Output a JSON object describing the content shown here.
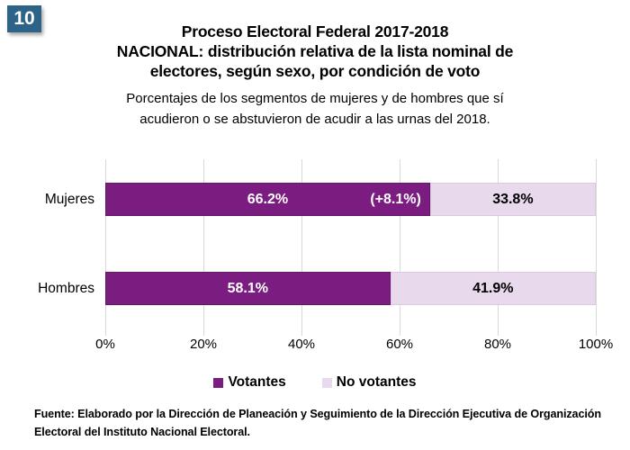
{
  "figure": {
    "badge": "10",
    "title_lines": [
      "Proceso Electoral Federal 2017-2018",
      "NACIONAL:  distribución relativa de la lista nominal de",
      "electores, según sexo, por condición de voto"
    ],
    "subtitle_lines": [
      "Porcentajes de los segmentos de mujeres y de hombres que sí",
      "acudieron o se abstuvieron de acudir a las urnas del 2018."
    ],
    "source_lines": [
      "Fuente: Elaborado por la Dirección de Planeación y Seguimiento de la Dirección Ejecutiva de Organización",
      "Electoral del Instituto Nacional Electoral."
    ]
  },
  "chart_data": {
    "type": "bar",
    "orientation": "horizontal",
    "stacked": true,
    "unit": "%",
    "categories": [
      "Mujeres",
      "Hombres"
    ],
    "series": [
      {
        "name": "Votantes",
        "color": "#7A1C80",
        "values": [
          66.2,
          58.1
        ],
        "labels": [
          "66.2%",
          "58.1%"
        ]
      },
      {
        "name": "No votantes",
        "color": "#E8D9EC",
        "values": [
          33.8,
          41.9
        ],
        "labels": [
          "33.8%",
          "41.9%"
        ]
      }
    ],
    "annotations": [
      {
        "category": "Mujeres",
        "series": "Votantes",
        "text": "(+8.1%)",
        "position": "inside-end"
      }
    ],
    "x_axis": {
      "min": 0,
      "max": 100,
      "tick_labels": [
        "0%",
        "20%",
        "40%",
        "60%",
        "80%",
        "100%"
      ],
      "gridlines": true
    },
    "legend": {
      "position": "bottom",
      "entries": [
        "Votantes",
        "No votantes"
      ]
    }
  },
  "colors": {
    "votantes": "#7A1C80",
    "no_votantes": "#E8D9EC",
    "badge_bg": "#2E6388",
    "badge_text": "#FFFFFF",
    "gridline": "#D9D9D9",
    "text": "#000000"
  }
}
